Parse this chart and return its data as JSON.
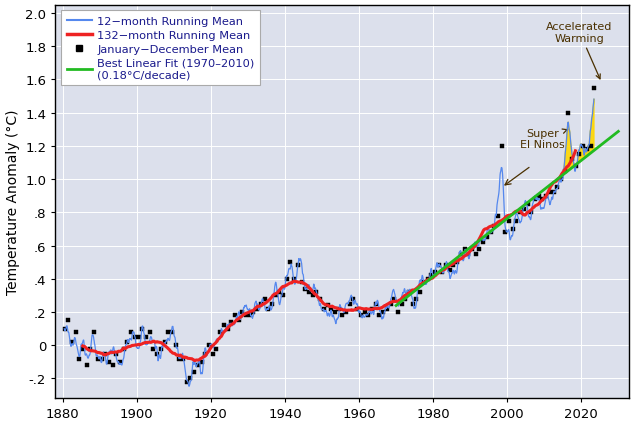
{
  "title": "",
  "ylabel": "Temperature Anomaly (°C)",
  "xlabel": "",
  "xlim": [
    1878,
    2033
  ],
  "ylim": [
    -0.32,
    2.05
  ],
  "yticks": [
    -0.2,
    0.0,
    0.2,
    0.4,
    0.6,
    0.8,
    1.0,
    1.2,
    1.4,
    1.6,
    1.8,
    2.0
  ],
  "ytick_labels": [
    "-.2",
    "0",
    ".2",
    ".4",
    ".6",
    ".8",
    "1.0",
    "1.2",
    "1.4",
    "1.6",
    "1.8",
    "2.0"
  ],
  "xticks": [
    1880,
    1900,
    1920,
    1940,
    1960,
    1980,
    2000,
    2020
  ],
  "bg_color": "#dce0ec",
  "line12_color": "#5588ee",
  "line132_color": "#ee2222",
  "linfit_color": "#22bb22",
  "text_color": "#4a3000",
  "ann_color": "#555555",
  "legend_text_color": "#1a1a8c"
}
